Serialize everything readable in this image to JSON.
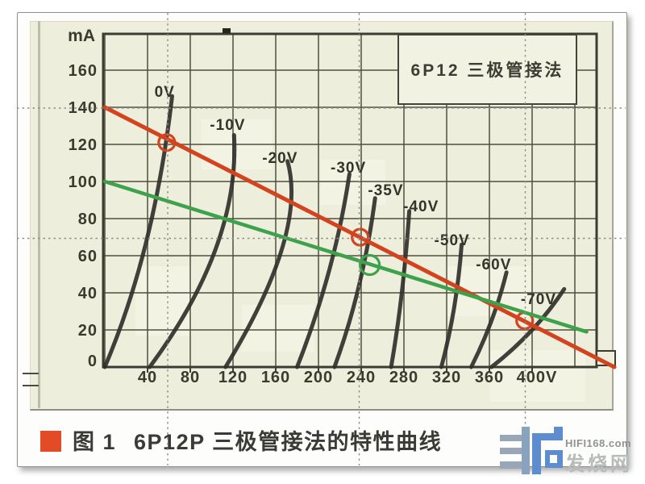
{
  "page": {
    "background": "#ffffff",
    "paper_color": "#fdfdfb",
    "figure_bg": "#eeeedc"
  },
  "figure": {
    "caption_label": "图 1",
    "caption_text": "6P12P 三极管接法的特性曲线",
    "caption_bullet_color": "#e24b26"
  },
  "watermark": {
    "site": "HIFI168.com",
    "name": "发烧网",
    "logo_color": "#5d8dce"
  },
  "chart_data": {
    "type": "line",
    "title": "6P12 三极管接法",
    "y_unit_label": "mA",
    "x_unit_suffix": "V",
    "xlim": [
      0,
      460
    ],
    "ylim": [
      0,
      180
    ],
    "grid": {
      "x_step": 40,
      "x_max": 440,
      "y_step": 20,
      "y_max": 160,
      "grid_on": true
    },
    "x_ticks": [
      {
        "value": 40,
        "label": "40"
      },
      {
        "value": 80,
        "label": "80"
      },
      {
        "value": 120,
        "label": "120"
      },
      {
        "value": 160,
        "label": "160"
      },
      {
        "value": 200,
        "label": "200"
      },
      {
        "value": 240,
        "label": "240"
      },
      {
        "value": 280,
        "label": "280"
      },
      {
        "value": 320,
        "label": "320"
      },
      {
        "value": 360,
        "label": "360"
      },
      {
        "value": 400,
        "label": "400V"
      }
    ],
    "y_ticks": [
      {
        "value": 0,
        "label": "0"
      },
      {
        "value": 20,
        "label": "20"
      },
      {
        "value": 40,
        "label": "40"
      },
      {
        "value": 60,
        "label": "60"
      },
      {
        "value": 80,
        "label": "80"
      },
      {
        "value": 100,
        "label": "100"
      },
      {
        "value": 120,
        "label": "120"
      },
      {
        "value": 140,
        "label": "140"
      },
      {
        "value": 160,
        "label": "160"
      }
    ],
    "curves": [
      {
        "label": "0V",
        "points": [
          [
            0,
            0
          ],
          [
            39,
            68
          ],
          [
            63,
            146
          ]
        ],
        "label_pos": [
          56,
          148
        ]
      },
      {
        "label": "-10V",
        "points": [
          [
            42,
            0
          ],
          [
            104,
            64
          ],
          [
            121,
            125
          ]
        ],
        "label_pos": [
          115,
          130
        ]
      },
      {
        "label": "-20V",
        "points": [
          [
            113,
            0
          ],
          [
            166,
            64
          ],
          [
            171,
            111
          ]
        ],
        "label_pos": [
          164,
          112
        ]
      },
      {
        "label": "-30V",
        "points": [
          [
            180,
            0
          ],
          [
            210,
            52
          ],
          [
            229,
            104
          ]
        ],
        "label_pos": [
          228,
          107
        ]
      },
      {
        "label": "-35V",
        "points": [
          [
            215,
            0
          ],
          [
            238,
            44
          ],
          [
            253,
            91
          ]
        ],
        "label_pos": [
          263,
          95
        ]
      },
      {
        "label": "-40V",
        "points": [
          [
            268,
            0
          ],
          [
            278,
            40
          ],
          [
            285,
            84
          ]
        ],
        "label_pos": [
          296,
          86
        ]
      },
      {
        "label": "-50V",
        "points": [
          [
            315,
            0
          ],
          [
            327,
            32
          ],
          [
            334,
            66
          ]
        ],
        "label_pos": [
          325,
          68
        ]
      },
      {
        "label": "-60V",
        "points": [
          [
            343,
            0
          ],
          [
            362,
            25
          ],
          [
            376,
            51
          ]
        ],
        "label_pos": [
          364,
          55
        ]
      },
      {
        "label": "-70V",
        "points": [
          [
            362,
            0
          ],
          [
            400,
            20
          ],
          [
            430,
            42
          ]
        ],
        "label_pos": [
          406,
          36
        ]
      }
    ],
    "load_lines": [
      {
        "name": "red-load-line",
        "color": "#d2431e",
        "width": 5,
        "points": [
          [
            0,
            140
          ],
          [
            477,
            0
          ]
        ],
        "markers": [
          [
            58,
            121
          ],
          [
            239,
            70
          ],
          [
            393,
            25
          ]
        ],
        "marker_radius": 10
      },
      {
        "name": "green-load-line",
        "color": "#3ea24c",
        "width": 4.5,
        "points": [
          [
            0,
            100
          ],
          [
            451,
            19
          ]
        ],
        "markers": [
          [
            248,
            55
          ]
        ],
        "marker_radius": 12
      }
    ],
    "curve_color": "#31302a",
    "grid_color": "#51503f",
    "border_color": "#3d3c32",
    "axis_text_color": "#3b3a2e"
  }
}
